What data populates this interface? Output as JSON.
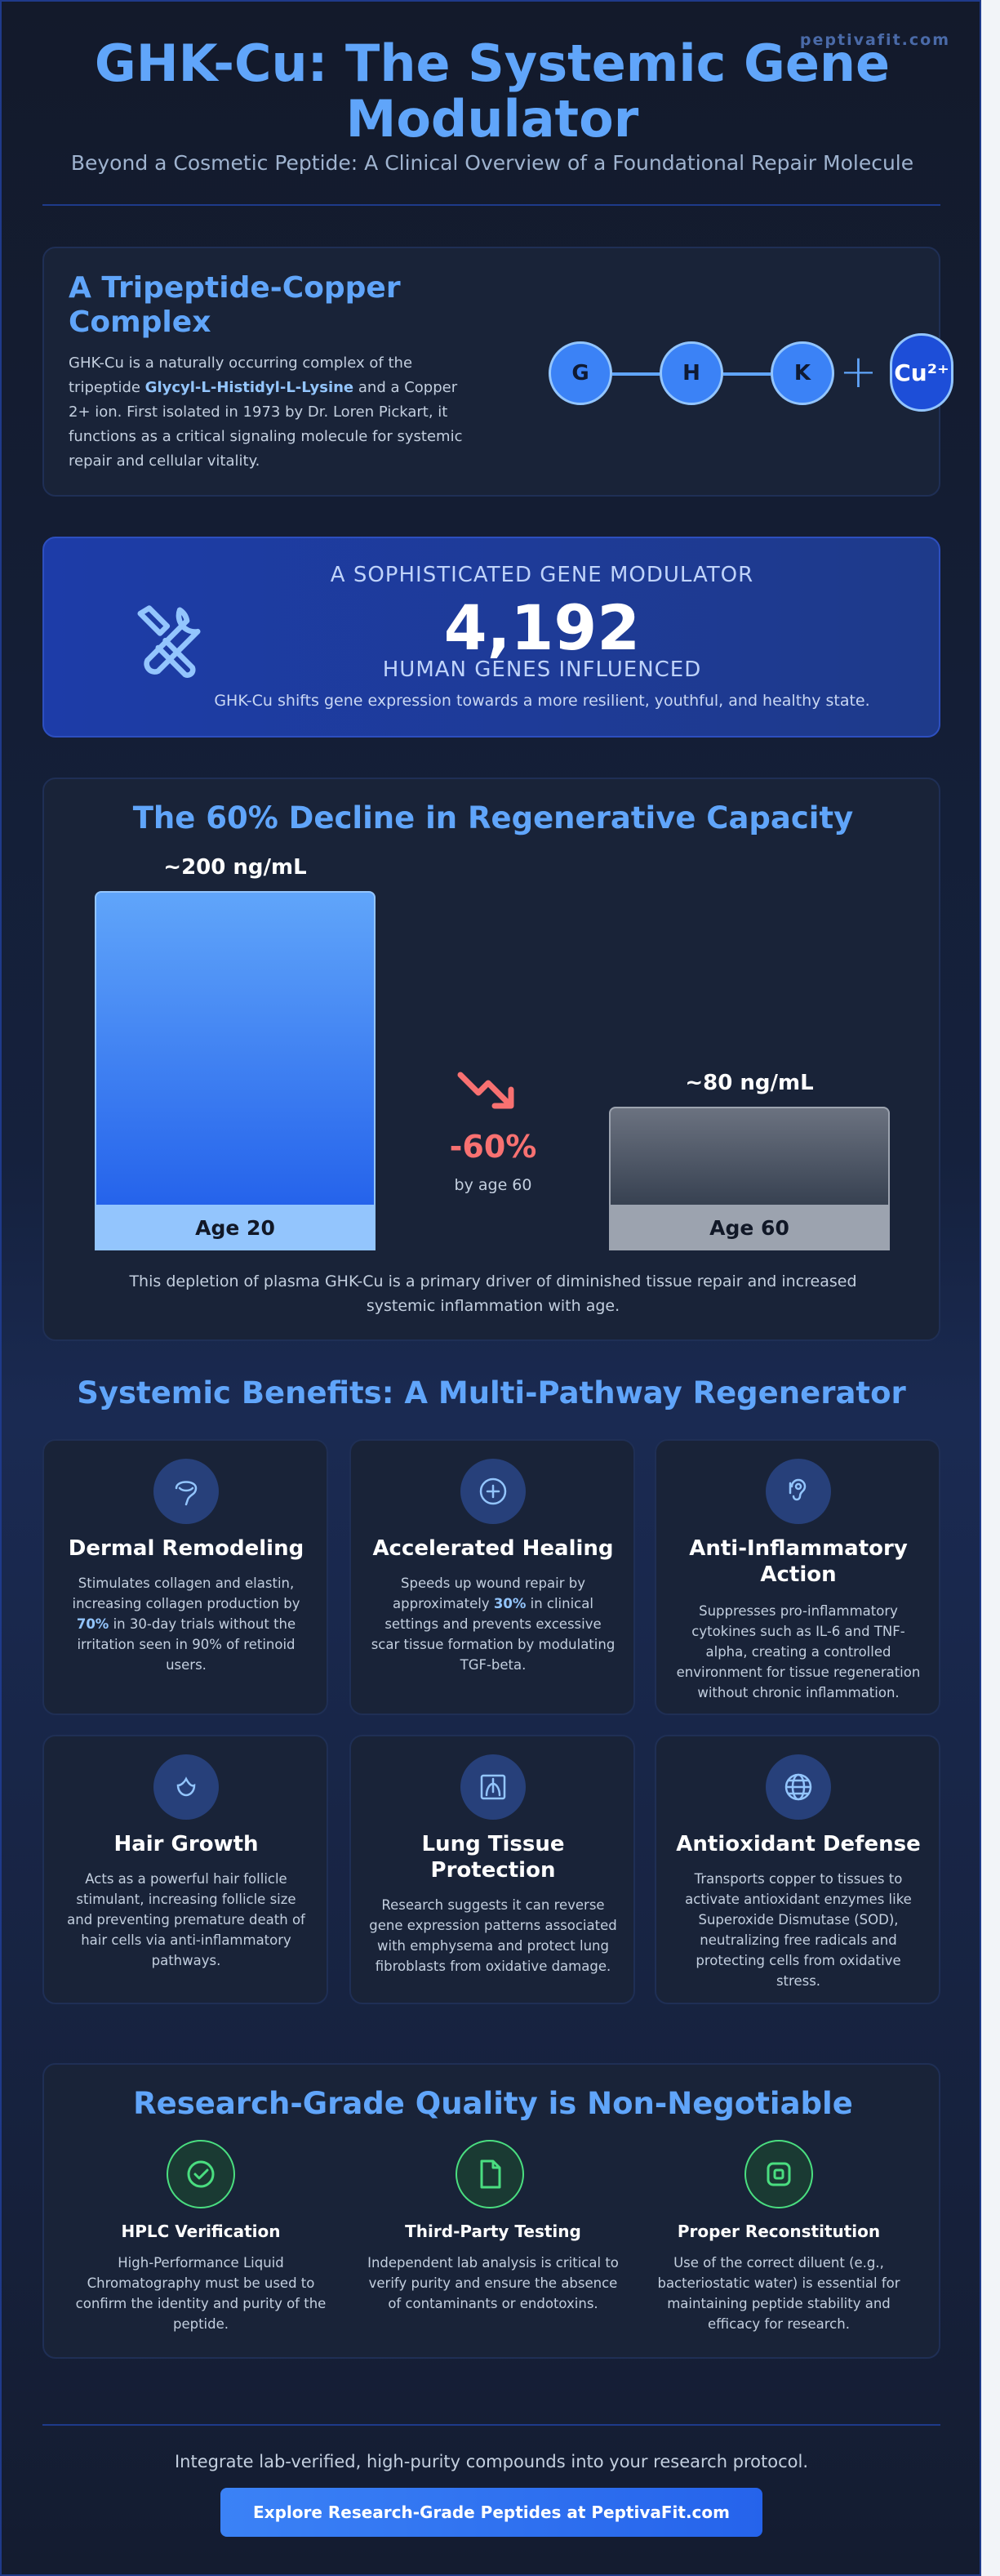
{
  "brand": "peptivafit.com",
  "hero": {
    "title": "GHK-Cu: The Systemic Gene Modulator",
    "subtitle": "Beyond a Cosmetic Peptide: A Clinical Overview of a Foundational Repair Molecule"
  },
  "intro": {
    "title": "A Tripeptide-Copper Complex",
    "text_1": "GHK-Cu is a naturally occurring complex of the tripeptide ",
    "text_bold": "Glycyl-L-Histidyl-L-Lysine",
    "text_2": " and a Copper 2+ ion. First isolated in 1973 by Dr. Loren Pickart, it functions as a critical signaling molecule for systemic repair and cellular vitality.",
    "molecule": {
      "g": "G",
      "h": "H",
      "k": "K",
      "cu": "Cu²⁺"
    }
  },
  "gene": {
    "kicker": "A SOPHISTICATED GENE MODULATOR",
    "number": "4,192",
    "unit": "HUMAN GENES INFLUENCED",
    "description": "GHK-Cu shifts gene expression towards a more resilient, youthful, and healthy state.",
    "icon": "wrench-screwdriver-icon"
  },
  "decline": {
    "title": "The 60% Decline in Regenerative Capacity",
    "drop_pct": "-60%",
    "drop_note": "by age 60",
    "footnote": "This depletion of plasma GHK-Cu is a primary driver of diminished tissue repair and increased systemic inflammation with age.",
    "chart_data": {
      "type": "bar",
      "categories": [
        "Age 20",
        "Age 60"
      ],
      "values": [
        200,
        80
      ],
      "value_labels": [
        "~200 ng/mL",
        "~80 ng/mL"
      ],
      "colors": [
        "#3b82f6",
        "#4b5563"
      ]
    }
  },
  "benefits": {
    "title": "Systemic Benefits: A Multi-Pathway Regenerator",
    "items": [
      {
        "title": "Dermal Remodeling",
        "text_1": "Stimulates collagen and elastin, increasing collagen production by ",
        "bold": "70%",
        "text_2": " in 30-day trials without the irritation seen in 90% of retinoid users.",
        "icon": "dermal-icon"
      },
      {
        "title": "Accelerated Healing",
        "text_1": "Speeds up wound repair by approximately ",
        "bold": "30%",
        "text_2": " in clinical settings and prevents excessive scar tissue formation by modulating TGF-beta.",
        "icon": "plus-circle-icon"
      },
      {
        "title": "Anti-Inflammatory Action",
        "text_1": "Suppresses pro-inflammatory cytokines such as IL-6 and TNF-alpha, creating a controlled environment for tissue regeneration without chronic inflammation.",
        "bold": "",
        "text_2": "",
        "icon": "ear-icon"
      },
      {
        "title": "Hair Growth",
        "text_1": "Acts as a powerful hair follicle stimulant, increasing follicle size and preventing premature death of hair cells via anti-inflammatory pathways.",
        "bold": "",
        "text_2": "",
        "icon": "hair-icon"
      },
      {
        "title": "Lung Tissue Protection",
        "text_1": "Research suggests it can reverse gene expression patterns associated with emphysema and protect lung fibroblasts from oxidative damage.",
        "bold": "",
        "text_2": "",
        "icon": "lungs-icon"
      },
      {
        "title": "Antioxidant Defense",
        "text_1": "Transports copper to tissues to activate antioxidant enzymes like Superoxide Dismutase (SOD), neutralizing free radicals and protecting cells from oxidative stress.",
        "bold": "",
        "text_2": "",
        "icon": "globe-icon"
      }
    ]
  },
  "quality": {
    "title": "Research-Grade Quality is Non-Negotiable",
    "items": [
      {
        "title": "HPLC Verification",
        "text": "High-Performance Liquid Chromatography must be used to confirm the identity and purity of the peptide.",
        "icon": "check-circle-icon"
      },
      {
        "title": "Third-Party Testing",
        "text": "Independent lab analysis is critical to verify purity and ensure the absence of contaminants or endotoxins.",
        "icon": "document-icon"
      },
      {
        "title": "Proper Reconstitution",
        "text": "Use of the correct diluent (e.g., bacteriostatic water) is essential for maintaining peptide stability and efficacy for research.",
        "icon": "vial-icon"
      }
    ]
  },
  "footer": {
    "text": "Integrate lab-verified, high-purity compounds into your research protocol.",
    "cta": "Explore Research-Grade Peptides at PeptivaFit.com"
  }
}
